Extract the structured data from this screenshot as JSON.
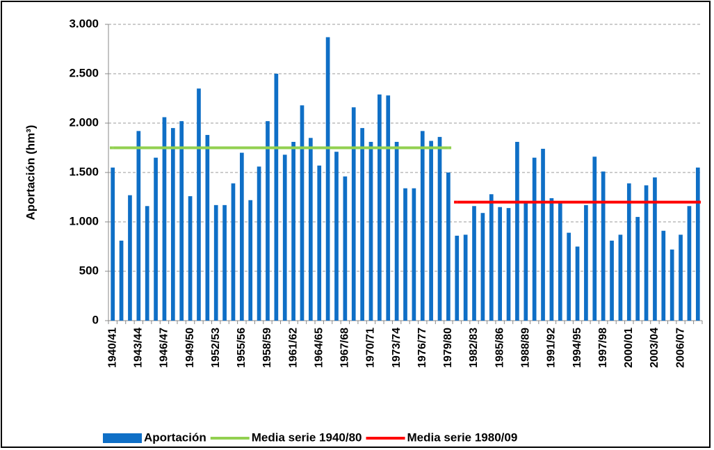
{
  "chart_data": {
    "type": "bar",
    "y_label": "Aportación (hm³)",
    "categories": [
      "1940/41",
      null,
      null,
      "1943/44",
      null,
      null,
      "1946/47",
      null,
      null,
      "1949/50",
      null,
      null,
      "1952/53",
      null,
      null,
      "1955/56",
      null,
      null,
      "1958/59",
      null,
      null,
      "1961/62",
      null,
      null,
      "1964/65",
      null,
      null,
      "1967/68",
      null,
      null,
      "1970/71",
      null,
      null,
      "1973/74",
      null,
      null,
      "1976/77",
      null,
      null,
      "1979/80",
      null,
      null,
      "1982/83",
      null,
      null,
      "1985/86",
      null,
      null,
      "1988/89",
      null,
      null,
      "1991/92",
      null,
      null,
      "1994/95",
      null,
      null,
      "1997/98",
      null,
      null,
      "2000/01",
      null,
      null,
      "2003/04",
      null,
      null,
      "2006/07",
      null,
      null
    ],
    "series": [
      {
        "name": "Aportación",
        "type": "bar",
        "color": "#0f6fc6",
        "values": [
          1550,
          810,
          1270,
          1920,
          1160,
          1650,
          2060,
          1950,
          2020,
          1260,
          2350,
          1880,
          1170,
          1170,
          1390,
          1700,
          1220,
          1560,
          2020,
          2500,
          1680,
          1810,
          2180,
          1850,
          1570,
          2870,
          1710,
          1460,
          2160,
          1950,
          1810,
          2290,
          2280,
          1810,
          1340,
          1340,
          1920,
          1820,
          1860,
          1500,
          860,
          870,
          1160,
          1090,
          1280,
          1150,
          1140,
          1810,
          1200,
          1650,
          1740,
          1240,
          1190,
          890,
          750,
          1170,
          1660,
          1510,
          810,
          870,
          1390,
          1050,
          1370,
          1450,
          910,
          720,
          870,
          1160,
          1550
        ]
      },
      {
        "name": "Media serie 1940/80",
        "type": "line",
        "color": "#92d050",
        "values": [
          1750,
          1750,
          1750,
          1750,
          1750,
          1750,
          1750,
          1750,
          1750,
          1750,
          1750,
          1750,
          1750,
          1750,
          1750,
          1750,
          1750,
          1750,
          1750,
          1750,
          1750,
          1750,
          1750,
          1750,
          1750,
          1750,
          1750,
          1750,
          1750,
          1750,
          1750,
          1750,
          1750,
          1750,
          1750,
          1750,
          1750,
          1750,
          1750,
          1750,
          null,
          null,
          null,
          null,
          null,
          null,
          null,
          null,
          null,
          null,
          null,
          null,
          null,
          null,
          null,
          null,
          null,
          null,
          null,
          null,
          null,
          null,
          null,
          null,
          null,
          null,
          null,
          null,
          null
        ]
      },
      {
        "name": "Media serie 1980/09",
        "type": "line",
        "color": "#ff0000",
        "values": [
          null,
          null,
          null,
          null,
          null,
          null,
          null,
          null,
          null,
          null,
          null,
          null,
          null,
          null,
          null,
          null,
          null,
          null,
          null,
          null,
          null,
          null,
          null,
          null,
          null,
          null,
          null,
          null,
          null,
          null,
          null,
          null,
          null,
          null,
          null,
          null,
          null,
          null,
          null,
          null,
          1200,
          1200,
          1200,
          1200,
          1200,
          1200,
          1200,
          1200,
          1200,
          1200,
          1200,
          1200,
          1200,
          1200,
          1200,
          1200,
          1200,
          1200,
          1200,
          1200,
          1200,
          1200,
          1200,
          1200,
          1200,
          1200,
          1200,
          1200,
          1200
        ]
      }
    ],
    "ylim": [
      0,
      3000
    ],
    "yticks": [
      0,
      {
        "value": 500,
        "label": "500"
      },
      {
        "value": 1000,
        "label": "1.000"
      },
      {
        "value": 1500,
        "label": "1.500"
      },
      {
        "value": 2000,
        "label": "2.000"
      },
      {
        "value": 2500,
        "label": "2.500"
      },
      {
        "value": 3000,
        "label": "3.000"
      }
    ],
    "grid": true
  }
}
